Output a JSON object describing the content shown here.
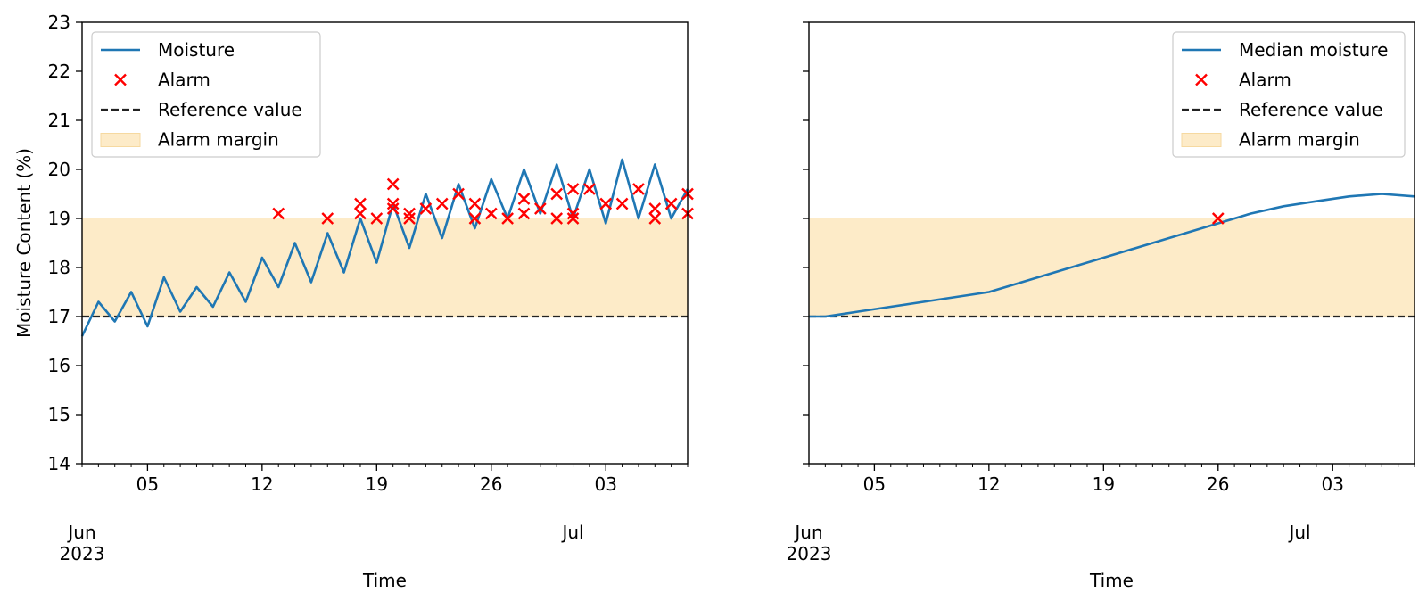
{
  "chart_data": [
    {
      "type": "line",
      "xlabel": "Time",
      "ylabel": "Moisture Content (%)",
      "ylim": [
        14,
        23
      ],
      "xlim": [
        "2023-06-01",
        "2023-07-08"
      ],
      "x_major_ticks": [
        {
          "date": "2023-06-05",
          "label": "05"
        },
        {
          "date": "2023-06-12",
          "label": "12"
        },
        {
          "date": "2023-06-19",
          "label": "19"
        },
        {
          "date": "2023-06-26",
          "label": "26"
        },
        {
          "date": "2023-07-03",
          "label": "03"
        }
      ],
      "x_month_labels": [
        {
          "date": "2023-06-01",
          "label": "Jun\n2023"
        },
        {
          "date": "2023-07-01",
          "label": "Jul"
        }
      ],
      "yticks": [
        14,
        15,
        16,
        17,
        18,
        19,
        20,
        21,
        22,
        23
      ],
      "legend_position": "top-left",
      "reference_value": 17,
      "alarm_margin": [
        17,
        19
      ],
      "series": [
        {
          "name": "Moisture",
          "kind": "line",
          "color": "#1f77b4",
          "points": [
            [
              "2023-06-01",
              16.6
            ],
            [
              "2023-06-02",
              17.3
            ],
            [
              "2023-06-03",
              16.9
            ],
            [
              "2023-06-04",
              17.5
            ],
            [
              "2023-06-05",
              16.8
            ],
            [
              "2023-06-06",
              17.8
            ],
            [
              "2023-06-07",
              17.1
            ],
            [
              "2023-06-08",
              17.6
            ],
            [
              "2023-06-09",
              17.2
            ],
            [
              "2023-06-10",
              17.9
            ],
            [
              "2023-06-11",
              17.3
            ],
            [
              "2023-06-12",
              18.2
            ],
            [
              "2023-06-13",
              17.6
            ],
            [
              "2023-06-14",
              18.5
            ],
            [
              "2023-06-15",
              17.7
            ],
            [
              "2023-06-16",
              18.7
            ],
            [
              "2023-06-17",
              17.9
            ],
            [
              "2023-06-18",
              19.0
            ],
            [
              "2023-06-19",
              18.1
            ],
            [
              "2023-06-20",
              19.3
            ],
            [
              "2023-06-21",
              18.4
            ],
            [
              "2023-06-22",
              19.5
            ],
            [
              "2023-06-23",
              18.6
            ],
            [
              "2023-06-24",
              19.7
            ],
            [
              "2023-06-25",
              18.8
            ],
            [
              "2023-06-26",
              19.8
            ],
            [
              "2023-06-27",
              19.0
            ],
            [
              "2023-06-28",
              20.0
            ],
            [
              "2023-06-29",
              19.1
            ],
            [
              "2023-06-30",
              20.1
            ],
            [
              "2023-07-01",
              19.0
            ],
            [
              "2023-07-02",
              20.0
            ],
            [
              "2023-07-03",
              18.9
            ],
            [
              "2023-07-04",
              20.2
            ],
            [
              "2023-07-05",
              19.0
            ],
            [
              "2023-07-06",
              20.1
            ],
            [
              "2023-07-07",
              19.0
            ],
            [
              "2023-07-08",
              19.6
            ]
          ]
        },
        {
          "name": "Alarm",
          "kind": "marker",
          "color": "#ff0000",
          "points": [
            [
              "2023-06-13",
              19.1
            ],
            [
              "2023-06-16",
              19.0
            ],
            [
              "2023-06-18",
              19.1
            ],
            [
              "2023-06-18",
              19.3
            ],
            [
              "2023-06-19",
              19.0
            ],
            [
              "2023-06-20",
              19.2
            ],
            [
              "2023-06-20",
              19.3
            ],
            [
              "2023-06-20",
              19.7
            ],
            [
              "2023-06-21",
              19.1
            ],
            [
              "2023-06-21",
              19.0
            ],
            [
              "2023-06-22",
              19.2
            ],
            [
              "2023-06-23",
              19.3
            ],
            [
              "2023-06-24",
              19.5
            ],
            [
              "2023-06-25",
              19.0
            ],
            [
              "2023-06-25",
              19.3
            ],
            [
              "2023-06-26",
              19.1
            ],
            [
              "2023-06-27",
              19.0
            ],
            [
              "2023-06-28",
              19.4
            ],
            [
              "2023-06-28",
              19.1
            ],
            [
              "2023-06-29",
              19.2
            ],
            [
              "2023-06-30",
              19.5
            ],
            [
              "2023-06-30",
              19.0
            ],
            [
              "2023-07-01",
              19.6
            ],
            [
              "2023-07-01",
              19.1
            ],
            [
              "2023-07-01",
              19.0
            ],
            [
              "2023-07-02",
              19.6
            ],
            [
              "2023-07-03",
              19.3
            ],
            [
              "2023-07-04",
              19.3
            ],
            [
              "2023-07-05",
              19.6
            ],
            [
              "2023-07-06",
              19.2
            ],
            [
              "2023-07-06",
              19.0
            ],
            [
              "2023-07-07",
              19.3
            ],
            [
              "2023-07-08",
              19.1
            ],
            [
              "2023-07-08",
              19.5
            ]
          ]
        },
        {
          "name": "Reference value",
          "kind": "dashed",
          "color": "#222222"
        },
        {
          "name": "Alarm margin",
          "kind": "band",
          "color": "#fdebc8"
        }
      ]
    },
    {
      "type": "line",
      "xlabel": "Time",
      "ylabel": "",
      "ylim": [
        14,
        23
      ],
      "xlim": [
        "2023-06-01",
        "2023-07-08"
      ],
      "x_major_ticks": [
        {
          "date": "2023-06-05",
          "label": "05"
        },
        {
          "date": "2023-06-12",
          "label": "12"
        },
        {
          "date": "2023-06-19",
          "label": "19"
        },
        {
          "date": "2023-06-26",
          "label": "26"
        },
        {
          "date": "2023-07-03",
          "label": "03"
        }
      ],
      "x_month_labels": [
        {
          "date": "2023-06-01",
          "label": "Jun\n2023"
        },
        {
          "date": "2023-07-01",
          "label": "Jul"
        }
      ],
      "yticks": [
        14,
        15,
        16,
        17,
        18,
        19,
        20,
        21,
        22,
        23
      ],
      "legend_position": "top-right",
      "reference_value": 17,
      "alarm_margin": [
        17,
        19
      ],
      "series": [
        {
          "name": "Median moisture",
          "kind": "line",
          "color": "#1f77b4",
          "points": [
            [
              "2023-06-01",
              17.0
            ],
            [
              "2023-06-02",
              17.0
            ],
            [
              "2023-06-03",
              17.05
            ],
            [
              "2023-06-04",
              17.1
            ],
            [
              "2023-06-06",
              17.2
            ],
            [
              "2023-06-08",
              17.3
            ],
            [
              "2023-06-10",
              17.4
            ],
            [
              "2023-06-12",
              17.5
            ],
            [
              "2023-06-14",
              17.7
            ],
            [
              "2023-06-16",
              17.9
            ],
            [
              "2023-06-18",
              18.1
            ],
            [
              "2023-06-20",
              18.3
            ],
            [
              "2023-06-22",
              18.5
            ],
            [
              "2023-06-24",
              18.7
            ],
            [
              "2023-06-26",
              18.9
            ],
            [
              "2023-06-28",
              19.1
            ],
            [
              "2023-06-30",
              19.25
            ],
            [
              "2023-07-02",
              19.35
            ],
            [
              "2023-07-04",
              19.45
            ],
            [
              "2023-07-06",
              19.5
            ],
            [
              "2023-07-08",
              19.45
            ]
          ]
        },
        {
          "name": "Alarm",
          "kind": "marker",
          "color": "#ff0000",
          "points": [
            [
              "2023-06-26",
              19.0
            ]
          ]
        },
        {
          "name": "Reference value",
          "kind": "dashed",
          "color": "#222222"
        },
        {
          "name": "Alarm margin",
          "kind": "band",
          "color": "#fdebc8"
        }
      ]
    }
  ]
}
